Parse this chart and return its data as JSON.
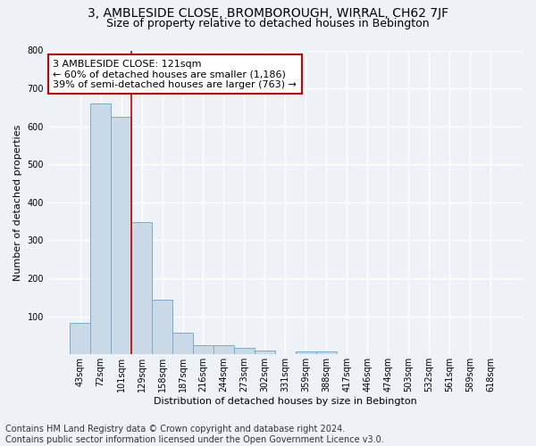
{
  "title": "3, AMBLESIDE CLOSE, BROMBOROUGH, WIRRAL, CH62 7JF",
  "subtitle": "Size of property relative to detached houses in Bebington",
  "xlabel": "Distribution of detached houses by size in Bebington",
  "ylabel": "Number of detached properties",
  "categories": [
    "43sqm",
    "72sqm",
    "101sqm",
    "129sqm",
    "158sqm",
    "187sqm",
    "216sqm",
    "244sqm",
    "273sqm",
    "302sqm",
    "331sqm",
    "359sqm",
    "388sqm",
    "417sqm",
    "446sqm",
    "474sqm",
    "503sqm",
    "532sqm",
    "561sqm",
    "589sqm",
    "618sqm"
  ],
  "values": [
    83,
    660,
    625,
    348,
    145,
    57,
    23,
    23,
    18,
    10,
    0,
    8,
    8,
    0,
    0,
    0,
    0,
    0,
    0,
    0,
    0
  ],
  "bar_color": "#c9d9e8",
  "bar_edge_color": "#7aaaca",
  "annotation_text": "3 AMBLESIDE CLOSE: 121sqm\n← 60% of detached houses are smaller (1,186)\n39% of semi-detached houses are larger (763) →",
  "annotation_box_color": "#ffffff",
  "annotation_box_edge_color": "#cc0000",
  "vline_color": "#cc0000",
  "background_color": "#eef2f7",
  "grid_color": "#ffffff",
  "footnote": "Contains HM Land Registry data © Crown copyright and database right 2024.\nContains public sector information licensed under the Open Government Licence v3.0.",
  "ylim": [
    0,
    800
  ],
  "yticks": [
    100,
    200,
    300,
    400,
    500,
    600,
    700,
    800
  ],
  "title_fontsize": 10,
  "subtitle_fontsize": 9,
  "axis_label_fontsize": 8,
  "tick_fontsize": 7,
  "annotation_fontsize": 8,
  "footnote_fontsize": 7
}
